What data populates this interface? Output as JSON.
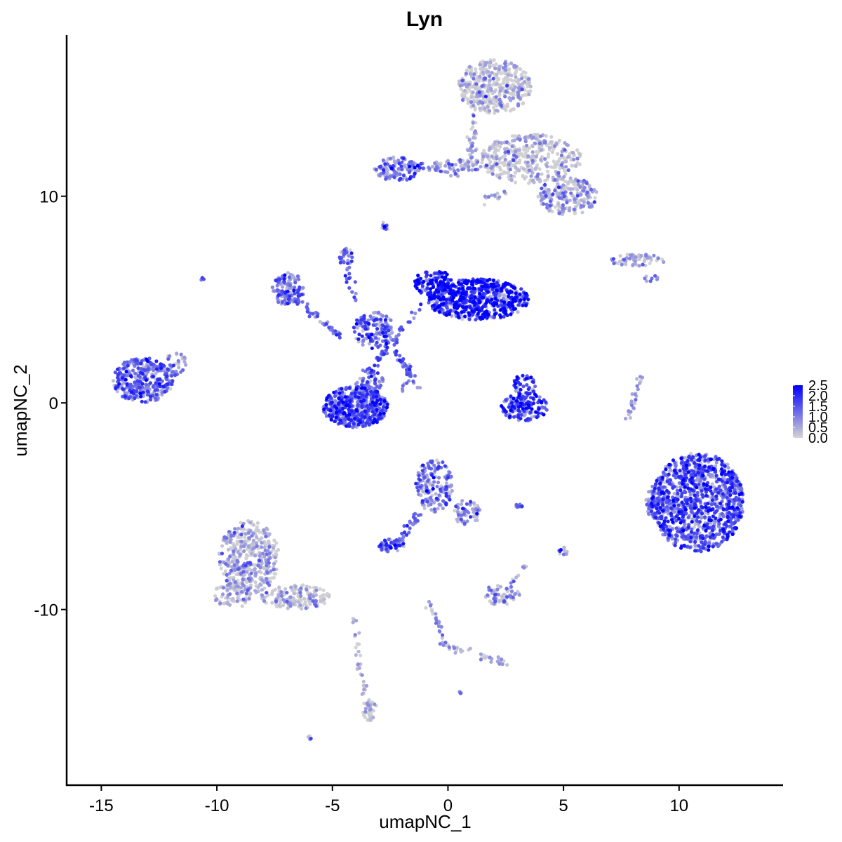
{
  "chart_data": {
    "type": "scatter",
    "title": "Lyn",
    "xlabel": "umapNC_1",
    "ylabel": "umapNC_2",
    "xlim": [
      -16.5,
      14.5
    ],
    "ylim": [
      -18.5,
      17.8
    ],
    "xticks": [
      -15,
      -10,
      -5,
      0,
      5,
      10
    ],
    "yticks": [
      10,
      0,
      -10
    ],
    "xtick_labels": [
      "-15",
      "-10",
      "-5",
      "0",
      "5",
      "10"
    ],
    "ytick_labels": [
      "10",
      "0",
      "-10"
    ],
    "grid": false,
    "legend": {
      "placement": "right",
      "title": "",
      "min": 0.0,
      "max": 2.5,
      "low_color": "#d3d3d3",
      "high_color": "#0000ff",
      "breaks": [
        2.5,
        2.0,
        1.5,
        1.0,
        0.5,
        0.0
      ],
      "labels": [
        "2.5",
        "2.0",
        "1.5",
        "1.0",
        "0.5",
        "0.0"
      ]
    },
    "clusters": [
      {
        "name": "c1",
        "cx": -13.2,
        "cy": 1.1,
        "rx": 1.3,
        "ry": 1.1,
        "n": 360,
        "expr": 1.3
      },
      {
        "name": "c2",
        "cx": -11.8,
        "cy": 1.9,
        "rx": 0.5,
        "ry": 0.6,
        "n": 40,
        "expr": 1.0
      },
      {
        "name": "c3",
        "cx": 10.8,
        "cy": -4.8,
        "rx": 2.0,
        "ry": 2.4,
        "n": 1100,
        "expr": 1.6
      },
      {
        "name": "c4",
        "cx": 9.0,
        "cy": -4.8,
        "rx": 0.5,
        "ry": 0.8,
        "n": 60,
        "expr": 1.2
      },
      {
        "name": "c5",
        "cx": 1.3,
        "cy": 5.0,
        "rx": 2.2,
        "ry": 1.0,
        "n": 650,
        "expr": 2.1
      },
      {
        "name": "c6",
        "cx": -0.6,
        "cy": 5.8,
        "rx": 0.9,
        "ry": 0.6,
        "n": 120,
        "expr": 2.1
      },
      {
        "name": "c7",
        "cx": -4.0,
        "cy": -0.2,
        "rx": 1.4,
        "ry": 1.0,
        "n": 500,
        "expr": 1.6
      },
      {
        "name": "c8",
        "cx": -6.9,
        "cy": 5.5,
        "rx": 0.7,
        "ry": 0.8,
        "n": 140,
        "expr": 1.1
      },
      {
        "name": "c9",
        "cx": -3.2,
        "cy": 3.5,
        "rx": 0.9,
        "ry": 0.9,
        "n": 130,
        "expr": 1.4
      },
      {
        "name": "c10",
        "cx": -3.4,
        "cy": 1.0,
        "rx": 0.6,
        "ry": 0.8,
        "n": 80,
        "expr": 1.4
      },
      {
        "name": "c11",
        "cx": -4.4,
        "cy": 7.0,
        "rx": 0.3,
        "ry": 0.5,
        "n": 25,
        "expr": 1.4
      },
      {
        "name": "c12",
        "cx": 3.3,
        "cy": -0.2,
        "rx": 1.0,
        "ry": 0.7,
        "n": 140,
        "expr": 2.0
      },
      {
        "name": "c13",
        "cx": 3.3,
        "cy": 0.8,
        "rx": 0.5,
        "ry": 0.6,
        "n": 45,
        "expr": 1.8
      },
      {
        "name": "c14",
        "cx": 2.0,
        "cy": 15.3,
        "rx": 1.6,
        "ry": 1.3,
        "n": 420,
        "expr": 0.15
      },
      {
        "name": "c15",
        "cx": 3.6,
        "cy": 11.8,
        "rx": 2.2,
        "ry": 1.2,
        "n": 380,
        "expr": 0.2
      },
      {
        "name": "c16",
        "cx": 5.2,
        "cy": 10.0,
        "rx": 1.3,
        "ry": 0.9,
        "n": 220,
        "expr": 0.5
      },
      {
        "name": "c17",
        "cx": -2.2,
        "cy": 11.3,
        "rx": 1.0,
        "ry": 0.6,
        "n": 120,
        "expr": 1.1
      },
      {
        "name": "c18",
        "cx": 0.5,
        "cy": 11.5,
        "rx": 1.2,
        "ry": 0.3,
        "n": 60,
        "expr": 0.6
      },
      {
        "name": "c19",
        "cx": -8.6,
        "cy": -7.5,
        "rx": 1.3,
        "ry": 1.8,
        "n": 420,
        "expr": 0.4
      },
      {
        "name": "c20",
        "cx": -6.6,
        "cy": -9.4,
        "rx": 1.5,
        "ry": 0.6,
        "n": 160,
        "expr": 0.3
      },
      {
        "name": "c21",
        "cx": -9.3,
        "cy": -9.3,
        "rx": 0.9,
        "ry": 0.6,
        "n": 70,
        "expr": 0.4
      },
      {
        "name": "c22",
        "cx": -3.4,
        "cy": -14.8,
        "rx": 0.3,
        "ry": 0.6,
        "n": 40,
        "expr": 0.3
      },
      {
        "name": "c23",
        "cx": -0.6,
        "cy": -4.0,
        "rx": 0.8,
        "ry": 1.3,
        "n": 170,
        "expr": 1.2
      },
      {
        "name": "c24",
        "cx": 0.8,
        "cy": -5.3,
        "rx": 0.6,
        "ry": 0.6,
        "n": 60,
        "expr": 0.9
      },
      {
        "name": "c25",
        "cx": -2.5,
        "cy": -6.9,
        "rx": 0.6,
        "ry": 0.3,
        "n": 50,
        "expr": 1.6
      },
      {
        "name": "c26",
        "cx": 2.3,
        "cy": -9.3,
        "rx": 0.8,
        "ry": 0.5,
        "n": 70,
        "expr": 0.6
      },
      {
        "name": "c27",
        "cx": 8.2,
        "cy": 6.9,
        "rx": 1.2,
        "ry": 0.3,
        "n": 70,
        "expr": 0.3
      },
      {
        "name": "c28",
        "cx": -2.7,
        "cy": 8.6,
        "rx": 0.2,
        "ry": 0.2,
        "n": 10,
        "expr": 1.2
      },
      {
        "name": "c29",
        "cx": 5.0,
        "cy": -7.2,
        "rx": 0.2,
        "ry": 0.3,
        "n": 10,
        "expr": 1.4
      },
      {
        "name": "c30",
        "cx": 3.0,
        "cy": -5.0,
        "rx": 0.3,
        "ry": 0.1,
        "n": 8,
        "expr": 1.2
      },
      {
        "name": "c31",
        "cx": 0.6,
        "cy": -14.0,
        "rx": 0.1,
        "ry": 0.1,
        "n": 4,
        "expr": 1.3
      },
      {
        "name": "c32",
        "cx": -6.0,
        "cy": -16.2,
        "rx": 0.1,
        "ry": 0.1,
        "n": 4,
        "expr": 1.2
      },
      {
        "name": "c33",
        "cx": -10.6,
        "cy": 6.0,
        "rx": 0.1,
        "ry": 0.1,
        "n": 3,
        "expr": 1.4
      },
      {
        "name": "c34",
        "cx": 8.8,
        "cy": 6.0,
        "rx": 0.3,
        "ry": 0.2,
        "n": 8,
        "expr": 1.0
      }
    ],
    "trails": [
      {
        "name": "t1",
        "x0": -4.6,
        "y0": 7.2,
        "x1": -3.6,
        "y1": 3.6,
        "n": 30,
        "expr": 1.3
      },
      {
        "name": "t2",
        "x0": -2.4,
        "y0": 2.6,
        "x1": -1.2,
        "y1": 0.7,
        "n": 30,
        "expr": 1.2
      },
      {
        "name": "t3",
        "x0": -3.4,
        "y0": 1.5,
        "x1": -1.0,
        "y1": 5.0,
        "n": 40,
        "expr": 1.4
      },
      {
        "name": "t4",
        "x0": -6.5,
        "y0": 4.9,
        "x1": -4.6,
        "y1": 3.2,
        "n": 40,
        "expr": 1.1
      },
      {
        "name": "t5",
        "x0": 8.3,
        "y0": 1.2,
        "x1": 7.8,
        "y1": -0.7,
        "n": 25,
        "expr": 0.6
      },
      {
        "name": "t6",
        "x0": -1.2,
        "y0": -5.2,
        "x1": -2.2,
        "y1": -6.9,
        "n": 30,
        "expr": 1.2
      },
      {
        "name": "t7",
        "x0": -0.8,
        "y0": -9.5,
        "x1": -0.2,
        "y1": -11.7,
        "n": 25,
        "expr": 0.7
      },
      {
        "name": "t8",
        "x0": -0.2,
        "y0": -11.7,
        "x1": 2.5,
        "y1": -12.6,
        "n": 35,
        "expr": 0.4
      },
      {
        "name": "t9",
        "x0": -4.1,
        "y0": -10.4,
        "x1": -3.6,
        "y1": -14.2,
        "n": 30,
        "expr": 0.15
      },
      {
        "name": "t10",
        "x0": 2.8,
        "y0": -8.7,
        "x1": 3.4,
        "y1": -7.8,
        "n": 10,
        "expr": 0.5
      },
      {
        "name": "t11",
        "x0": 1.2,
        "y0": 14.0,
        "x1": 0.9,
        "y1": 11.5,
        "n": 40,
        "expr": 0.3
      },
      {
        "name": "t12",
        "x0": -1.5,
        "y0": 11.5,
        "x1": 0.6,
        "y1": 11.0,
        "n": 20,
        "expr": 1.0
      },
      {
        "name": "t13",
        "x0": 1.4,
        "y0": 9.7,
        "x1": 2.8,
        "y1": 10.3,
        "n": 15,
        "expr": 0.3
      },
      {
        "name": "t14",
        "x0": -1.6,
        "y0": 2.0,
        "x1": -1.9,
        "y1": 0.6,
        "n": 15,
        "expr": 1.2
      }
    ]
  }
}
